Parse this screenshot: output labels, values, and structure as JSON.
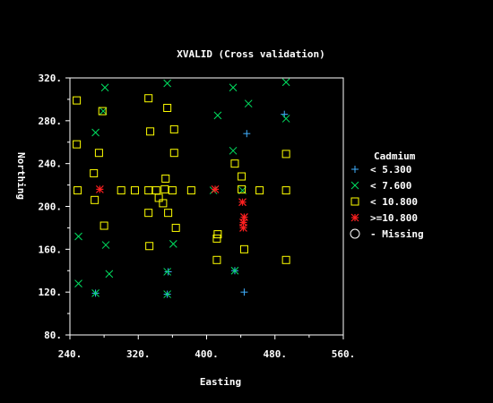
{
  "chart_data": {
    "type": "scatter",
    "title": "XVALID (Cross validation)",
    "xlabel": "Easting",
    "ylabel": "Northing",
    "xlim": [
      240,
      560
    ],
    "ylim": [
      80,
      320
    ],
    "xticks": [
      240,
      320,
      400,
      480,
      560
    ],
    "xtick_labels": [
      "240.",
      "320.",
      "400.",
      "480.",
      "560."
    ],
    "yticks": [
      80,
      120,
      160,
      200,
      240,
      280,
      320
    ],
    "ytick_labels": [
      "80.",
      "120.",
      "160.",
      "200.",
      "240.",
      "280.",
      "320."
    ],
    "grid": false,
    "legend": {
      "title": "Cadmium",
      "placement": "right",
      "entries": [
        {
          "label": "< 5.300",
          "marker": "plus",
          "color": "#40b0ff"
        },
        {
          "label": "< 7.600",
          "marker": "x",
          "color": "#00e060"
        },
        {
          "label": "< 10.800",
          "marker": "square",
          "color": "#ffff00"
        },
        {
          "label": ">=10.800",
          "marker": "star",
          "color": "#ff2020"
        },
        {
          "label": "- Missing",
          "marker": "circle",
          "color": "#ffffff"
        }
      ]
    },
    "series": [
      {
        "name": "< 5.300",
        "marker": "plus",
        "color": "#40b0ff",
        "points": [
          [
            270,
            119
          ],
          [
            355,
            139
          ],
          [
            354,
            118
          ],
          [
            444,
            120
          ],
          [
            447,
            268
          ],
          [
            433,
            140
          ],
          [
            491,
            286
          ]
        ]
      },
      {
        "name": "< 7.600",
        "marker": "x",
        "color": "#00e060",
        "points": [
          [
            281,
            311
          ],
          [
            279,
            289
          ],
          [
            270,
            269
          ],
          [
            354,
            315
          ],
          [
            431,
            311
          ],
          [
            413,
            285
          ],
          [
            449,
            296
          ],
          [
            493,
            316
          ],
          [
            493,
            282
          ],
          [
            431,
            252
          ],
          [
            282,
            164
          ],
          [
            361,
            165
          ],
          [
            250,
            128
          ],
          [
            250,
            172
          ],
          [
            286,
            137
          ],
          [
            354,
            139
          ],
          [
            354,
            118
          ],
          [
            433,
            140
          ],
          [
            270,
            119
          ],
          [
            408,
            215
          ],
          [
            442,
            215
          ]
        ]
      },
      {
        "name": "< 10.800",
        "marker": "square",
        "color": "#ffff00",
        "points": [
          [
            248,
            299
          ],
          [
            248,
            258
          ],
          [
            332,
            301
          ],
          [
            354,
            292
          ],
          [
            362,
            272
          ],
          [
            334,
            270
          ],
          [
            278,
            289
          ],
          [
            268,
            231
          ],
          [
            274,
            250
          ],
          [
            249,
            215
          ],
          [
            300,
            215
          ],
          [
            316,
            215
          ],
          [
            332,
            215
          ],
          [
            341,
            215
          ],
          [
            351,
            216
          ],
          [
            360,
            215
          ],
          [
            382,
            215
          ],
          [
            441,
            216
          ],
          [
            462,
            215
          ],
          [
            493,
            215
          ],
          [
            493,
            249
          ],
          [
            433,
            240
          ],
          [
            441,
            228
          ],
          [
            352,
            226
          ],
          [
            344,
            208
          ],
          [
            349,
            203
          ],
          [
            355,
            194
          ],
          [
            332,
            194
          ],
          [
            269,
            206
          ],
          [
            280,
            182
          ],
          [
            364,
            180
          ],
          [
            413,
            174
          ],
          [
            412,
            170
          ],
          [
            333,
            163
          ],
          [
            412,
            150
          ],
          [
            444,
            160
          ],
          [
            493,
            150
          ],
          [
            362,
            250
          ]
        ]
      },
      {
        "name": ">=10.800",
        "marker": "star",
        "color": "#ff2020",
        "points": [
          [
            275,
            216
          ],
          [
            410,
            216
          ],
          [
            442,
            204
          ],
          [
            444,
            190
          ],
          [
            443,
            185
          ],
          [
            443,
            180
          ]
        ]
      }
    ]
  }
}
